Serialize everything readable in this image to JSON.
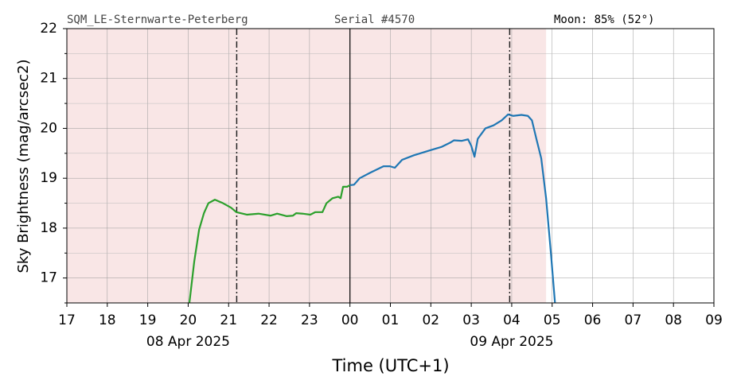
{
  "chart_data": {
    "type": "line",
    "header": [
      "SQM_LE-Sternwarte-Peterberg",
      "Serial #4570",
      "Moon: 85% (52°)"
    ],
    "ylabel": "Sky Brightness (mag/arcsec2)",
    "xlabel": "Time (UTC+1)",
    "xlim": [
      17,
      33
    ],
    "xticks": [
      17,
      18,
      19,
      20,
      21,
      22,
      23,
      {
        "value": 24,
        "label": "00"
      },
      {
        "value": 25,
        "label": "01"
      },
      {
        "value": 26,
        "label": "02"
      },
      {
        "value": 27,
        "label": "03"
      },
      {
        "value": 28,
        "label": "04"
      },
      {
        "value": 29,
        "label": "05"
      },
      {
        "value": 30,
        "label": "06"
      },
      {
        "value": 31,
        "label": "07"
      },
      {
        "value": 32,
        "label": "08"
      },
      {
        "value": 33,
        "label": "09"
      }
    ],
    "date_labels": [
      {
        "x": 20,
        "label": "08 Apr 2025"
      },
      {
        "x": 28,
        "label": "09 Apr 2025"
      }
    ],
    "ylim": [
      16.5,
      22
    ],
    "yticks": [
      17,
      18,
      19,
      20,
      21,
      22
    ],
    "yminorticks": [
      16.5,
      17.5,
      18.5,
      19.5,
      20.5,
      21.5
    ],
    "grid": true,
    "night_span": [
      17,
      28.85
    ],
    "night_color": "#f9e6e6",
    "twilight_lines": [
      21.2,
      27.95
    ],
    "midnight": 24,
    "series": [
      {
        "color": "#2ca02c",
        "x": [
          20.03,
          20.15,
          20.27,
          20.39,
          20.5,
          20.66,
          20.86,
          21.06,
          21.19,
          21.45,
          21.74,
          22.04,
          22.2,
          22.43,
          22.59,
          22.67,
          22.83,
          23.02,
          23.14,
          23.32,
          23.42,
          23.57,
          23.71,
          23.77,
          23.83,
          23.93,
          24
        ],
        "values": [
          16.5,
          17.33,
          17.97,
          18.3,
          18.5,
          18.57,
          18.5,
          18.41,
          18.32,
          18.27,
          18.29,
          18.25,
          18.29,
          18.24,
          18.25,
          18.3,
          18.29,
          18.27,
          18.32,
          18.32,
          18.5,
          18.6,
          18.63,
          18.6,
          18.83,
          18.83,
          18.86
        ]
      },
      {
        "color": "#1f77b4",
        "x": [
          24,
          24.1,
          24.24,
          24.5,
          24.83,
          24.99,
          25.11,
          25.29,
          25.58,
          25.98,
          26.27,
          26.47,
          26.57,
          26.76,
          26.92,
          27.0,
          27.08,
          27.16,
          27.35,
          27.55,
          27.75,
          27.91,
          28.04,
          28.24,
          28.4,
          28.5,
          28.61,
          28.73,
          28.85,
          28.97,
          29.07
        ],
        "values": [
          18.86,
          18.87,
          19.0,
          19.11,
          19.24,
          19.24,
          19.21,
          19.37,
          19.46,
          19.56,
          19.63,
          19.71,
          19.76,
          19.75,
          19.78,
          19.65,
          19.43,
          19.79,
          20.0,
          20.06,
          20.16,
          20.28,
          20.25,
          20.27,
          20.25,
          20.16,
          19.79,
          19.4,
          18.6,
          17.49,
          16.5
        ]
      }
    ]
  }
}
